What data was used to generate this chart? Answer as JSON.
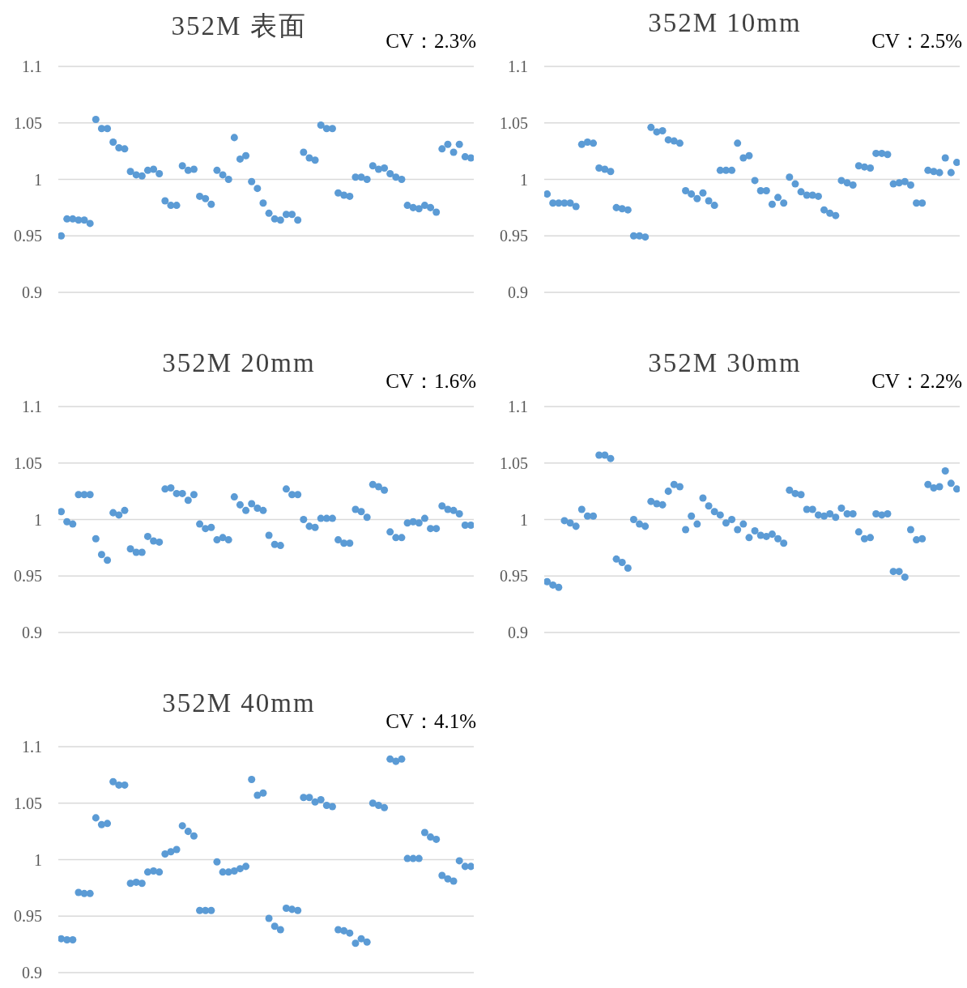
{
  "chart_data": [
    {
      "type": "scatter",
      "title": "352M 表面",
      "annotations": [
        "CV：2.3%"
      ],
      "categories": [
        null,
        null,
        null,
        null,
        null,
        null,
        null,
        null,
        null,
        null,
        null,
        null,
        null,
        null,
        null,
        null,
        null,
        null,
        null,
        null,
        null,
        null,
        null,
        null,
        null,
        null,
        null,
        null,
        null,
        null,
        null,
        null,
        null,
        null,
        null,
        null,
        null,
        null,
        null,
        null,
        null,
        null,
        null,
        null,
        null,
        null,
        null,
        null,
        null,
        null,
        null,
        null,
        null,
        null,
        null,
        null,
        null,
        null,
        null,
        null,
        null,
        null,
        null,
        null,
        null,
        null,
        null,
        null,
        null,
        null,
        null,
        null
      ],
      "color": "#5b9bd5",
      "marker": "circle",
      "grid": "y",
      "ylim": [
        0.9,
        1.1
      ],
      "yticks": [
        0.9,
        0.95,
        1,
        1.05,
        1.1
      ],
      "values": [
        0.95,
        0.965,
        0.965,
        0.964,
        0.964,
        0.961,
        1.053,
        1.045,
        1.045,
        1.033,
        1.028,
        1.027,
        1.007,
        1.004,
        1.003,
        1.008,
        1.009,
        1.005,
        0.981,
        0.977,
        0.977,
        1.012,
        1.008,
        1.009,
        0.985,
        0.983,
        0.978,
        1.008,
        1.004,
        1.0,
        1.037,
        1.018,
        1.021,
        0.998,
        0.992,
        0.979,
        0.97,
        0.965,
        0.964,
        0.969,
        0.969,
        0.964,
        1.024,
        1.019,
        1.017,
        1.048,
        1.045,
        1.045,
        0.988,
        0.986,
        0.985,
        1.002,
        1.002,
        1.0,
        1.012,
        1.009,
        1.01,
        1.005,
        1.002,
        1.0,
        0.977,
        0.975,
        0.974,
        0.977,
        0.975,
        0.971,
        1.027,
        1.031,
        1.024,
        1.031,
        1.02,
        1.019
      ]
    },
    {
      "type": "scatter",
      "title": "352M 10mm",
      "annotations": [
        "CV：2.5%"
      ],
      "categories": [
        null,
        null,
        null,
        null,
        null,
        null,
        null,
        null,
        null,
        null,
        null,
        null,
        null,
        null,
        null,
        null,
        null,
        null,
        null,
        null,
        null,
        null,
        null,
        null,
        null,
        null,
        null,
        null,
        null,
        null,
        null,
        null,
        null,
        null,
        null,
        null,
        null,
        null,
        null,
        null,
        null,
        null,
        null,
        null,
        null,
        null,
        null,
        null,
        null,
        null,
        null,
        null,
        null,
        null,
        null,
        null,
        null,
        null,
        null,
        null,
        null,
        null,
        null,
        null,
        null,
        null,
        null,
        null,
        null,
        null,
        null,
        null
      ],
      "color": "#5b9bd5",
      "marker": "circle",
      "grid": "y",
      "ylim": [
        0.9,
        1.1
      ],
      "yticks": [
        0.9,
        0.95,
        1,
        1.05,
        1.1
      ],
      "values": [
        0.987,
        0.979,
        0.979,
        0.979,
        0.979,
        0.976,
        1.031,
        1.033,
        1.032,
        1.01,
        1.009,
        1.007,
        0.975,
        0.974,
        0.973,
        0.95,
        0.95,
        0.949,
        1.046,
        1.042,
        1.043,
        1.035,
        1.034,
        1.032,
        0.99,
        0.987,
        0.983,
        0.988,
        0.981,
        0.977,
        1.008,
        1.008,
        1.008,
        1.032,
        1.019,
        1.021,
        0.999,
        0.99,
        0.99,
        0.978,
        0.984,
        0.979,
        1.002,
        0.996,
        0.989,
        0.986,
        0.986,
        0.985,
        0.973,
        0.97,
        0.968,
        0.999,
        0.997,
        0.995,
        1.012,
        1.011,
        1.01,
        1.023,
        1.023,
        1.022,
        0.996,
        0.997,
        0.998,
        0.995,
        0.979,
        0.979,
        1.008,
        1.007,
        1.006,
        1.019,
        1.006,
        1.015
      ]
    },
    {
      "type": "scatter",
      "title": "352M 20mm",
      "annotations": [
        "CV：1.6%"
      ],
      "categories": [
        null,
        null,
        null,
        null,
        null,
        null,
        null,
        null,
        null,
        null,
        null,
        null,
        null,
        null,
        null,
        null,
        null,
        null,
        null,
        null,
        null,
        null,
        null,
        null,
        null,
        null,
        null,
        null,
        null,
        null,
        null,
        null,
        null,
        null,
        null,
        null,
        null,
        null,
        null,
        null,
        null,
        null,
        null,
        null,
        null,
        null,
        null,
        null,
        null,
        null,
        null,
        null,
        null,
        null,
        null,
        null,
        null,
        null,
        null,
        null,
        null,
        null,
        null,
        null,
        null,
        null,
        null,
        null,
        null,
        null,
        null,
        null
      ],
      "color": "#5b9bd5",
      "marker": "circle",
      "grid": "y",
      "ylim": [
        0.9,
        1.1
      ],
      "yticks": [
        0.9,
        0.95,
        1,
        1.05,
        1.1
      ],
      "values": [
        1.007,
        0.998,
        0.996,
        1.022,
        1.022,
        1.022,
        0.983,
        0.969,
        0.964,
        1.006,
        1.004,
        1.008,
        0.974,
        0.971,
        0.971,
        0.985,
        0.981,
        0.98,
        1.027,
        1.028,
        1.023,
        1.023,
        1.017,
        1.022,
        0.996,
        0.992,
        0.993,
        0.982,
        0.984,
        0.982,
        1.02,
        1.013,
        1.008,
        1.014,
        1.01,
        1.008,
        0.986,
        0.978,
        0.977,
        1.027,
        1.022,
        1.022,
        1.0,
        0.994,
        0.993,
        1.001,
        1.001,
        1.001,
        0.982,
        0.979,
        0.979,
        1.009,
        1.007,
        1.002,
        1.031,
        1.029,
        1.026,
        0.989,
        0.984,
        0.984,
        0.997,
        0.998,
        0.997,
        1.001,
        0.992,
        0.992,
        1.012,
        1.009,
        1.008,
        1.005,
        0.995,
        0.995
      ]
    },
    {
      "type": "scatter",
      "title": "352M 30mm",
      "annotations": [
        "CV：2.2%"
      ],
      "categories": [
        null,
        null,
        null,
        null,
        null,
        null,
        null,
        null,
        null,
        null,
        null,
        null,
        null,
        null,
        null,
        null,
        null,
        null,
        null,
        null,
        null,
        null,
        null,
        null,
        null,
        null,
        null,
        null,
        null,
        null,
        null,
        null,
        null,
        null,
        null,
        null,
        null,
        null,
        null,
        null,
        null,
        null,
        null,
        null,
        null,
        null,
        null,
        null,
        null,
        null,
        null,
        null,
        null,
        null,
        null,
        null,
        null,
        null,
        null,
        null,
        null,
        null,
        null,
        null,
        null,
        null,
        null,
        null,
        null,
        null,
        null,
        null
      ],
      "color": "#5b9bd5",
      "marker": "circle",
      "grid": "y",
      "ylim": [
        0.9,
        1.1
      ],
      "yticks": [
        0.9,
        0.95,
        1,
        1.05,
        1.1
      ],
      "values": [
        0.945,
        0.942,
        0.94,
        0.999,
        0.997,
        0.994,
        1.009,
        1.003,
        1.003,
        1.057,
        1.057,
        1.054,
        0.965,
        0.962,
        0.957,
        1.0,
        0.996,
        0.994,
        1.016,
        1.014,
        1.013,
        1.025,
        1.031,
        1.029,
        0.991,
        1.003,
        0.996,
        1.019,
        1.012,
        1.007,
        1.004,
        0.997,
        1.0,
        0.991,
        0.996,
        0.984,
        0.99,
        0.986,
        0.985,
        0.987,
        0.983,
        0.979,
        1.026,
        1.023,
        1.022,
        1.009,
        1.009,
        1.004,
        1.003,
        1.005,
        1.002,
        1.01,
        1.005,
        1.005,
        0.989,
        0.983,
        0.984,
        1.005,
        1.004,
        1.005,
        0.954,
        0.954,
        0.949,
        0.991,
        0.982,
        0.983,
        1.031,
        1.028,
        1.029,
        1.043,
        1.032,
        1.027
      ]
    },
    {
      "type": "scatter",
      "title": "352M 40mm",
      "annotations": [
        "CV：4.1%"
      ],
      "categories": [
        null,
        null,
        null,
        null,
        null,
        null,
        null,
        null,
        null,
        null,
        null,
        null,
        null,
        null,
        null,
        null,
        null,
        null,
        null,
        null,
        null,
        null,
        null,
        null,
        null,
        null,
        null,
        null,
        null,
        null,
        null,
        null,
        null,
        null,
        null,
        null,
        null,
        null,
        null,
        null,
        null,
        null,
        null,
        null,
        null,
        null,
        null,
        null,
        null,
        null,
        null,
        null,
        null,
        null,
        null,
        null,
        null,
        null,
        null,
        null,
        null,
        null,
        null,
        null,
        null,
        null,
        null,
        null,
        null,
        null,
        null,
        null
      ],
      "color": "#5b9bd5",
      "marker": "circle",
      "grid": "y",
      "ylim": [
        0.9,
        1.1
      ],
      "yticks": [
        0.9,
        0.95,
        1,
        1.05,
        1.1
      ],
      "values": [
        0.93,
        0.929,
        0.929,
        0.971,
        0.97,
        0.97,
        1.037,
        1.031,
        1.032,
        1.069,
        1.066,
        1.066,
        0.979,
        0.98,
        0.979,
        0.989,
        0.99,
        0.989,
        1.005,
        1.007,
        1.009,
        1.03,
        1.025,
        1.021,
        0.955,
        0.955,
        0.955,
        0.998,
        0.989,
        0.989,
        0.99,
        0.992,
        0.994,
        1.071,
        1.057,
        1.059,
        0.948,
        0.941,
        0.938,
        0.957,
        0.956,
        0.955,
        1.055,
        1.055,
        1.051,
        1.053,
        1.048,
        1.047,
        0.938,
        0.937,
        0.935,
        0.926,
        0.93,
        0.927,
        1.05,
        1.048,
        1.046,
        1.089,
        1.087,
        1.089,
        1.001,
        1.001,
        1.001,
        1.024,
        1.02,
        1.018,
        0.986,
        0.983,
        0.981,
        0.999,
        0.994,
        0.994
      ]
    }
  ]
}
